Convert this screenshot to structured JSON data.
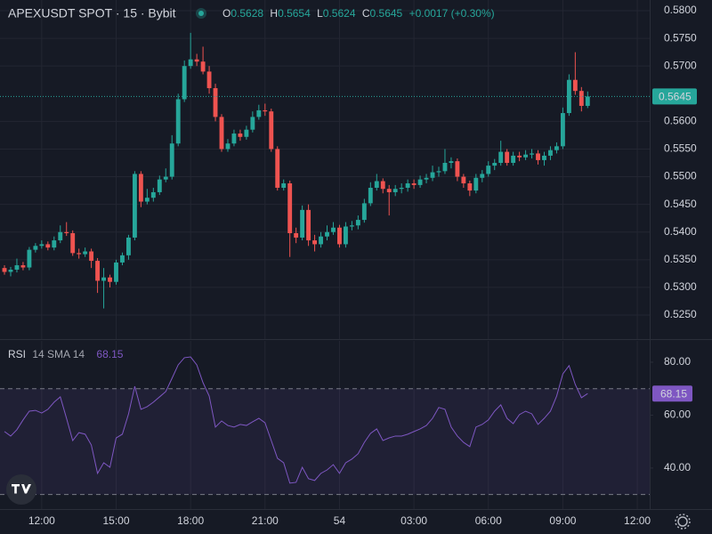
{
  "chart_data": [
    {
      "type": "candlestick",
      "title": "APEXUSDT SPOT · 15 · Bybit",
      "ohlc_labels": [
        "O",
        "H",
        "L",
        "C"
      ],
      "change": "+0.0017 (+0.30%)",
      "up_color": "#26a69a",
      "down_color": "#ef5350",
      "grid": true,
      "last_price_line": true,
      "open": [
        0.5335,
        0.5328,
        0.5332,
        0.534,
        0.5336,
        0.5368,
        0.5375,
        0.5378,
        0.5372,
        0.5385,
        0.54,
        0.5398,
        0.5362,
        0.536,
        0.5365,
        0.5348,
        0.5312,
        0.5318,
        0.531,
        0.5345,
        0.5358,
        0.539,
        0.5505,
        0.5455,
        0.5462,
        0.5472,
        0.5495,
        0.55,
        0.556,
        0.564,
        0.57,
        0.5712,
        0.5708,
        0.569,
        0.566,
        0.5608,
        0.555,
        0.556,
        0.5578,
        0.5572,
        0.5585,
        0.5608,
        0.562,
        0.5618,
        0.555,
        0.548,
        0.5488,
        0.5398,
        0.539,
        0.544,
        0.5385,
        0.5378,
        0.5392,
        0.54,
        0.5408,
        0.5378,
        0.541,
        0.5412,
        0.5422,
        0.5452,
        0.548,
        0.5492,
        0.5478,
        0.5472,
        0.5478,
        0.548,
        0.5488,
        0.5485,
        0.5495,
        0.5498,
        0.5508,
        0.551,
        0.5525,
        0.5528,
        0.55,
        0.5488,
        0.5475,
        0.5498,
        0.5505,
        0.552,
        0.5525,
        0.5545,
        0.5525,
        0.5538,
        0.5535,
        0.554,
        0.5542,
        0.553,
        0.5538,
        0.5548,
        0.5555,
        0.5615,
        0.5675,
        0.5655,
        0.5628
      ],
      "high": [
        0.534,
        0.5337,
        0.5352,
        0.5346,
        0.5373,
        0.538,
        0.5385,
        0.5383,
        0.5392,
        0.5412,
        0.5418,
        0.5403,
        0.537,
        0.5372,
        0.537,
        0.5353,
        0.5335,
        0.5323,
        0.535,
        0.5363,
        0.5395,
        0.551,
        0.551,
        0.5478,
        0.548,
        0.5502,
        0.5515,
        0.5575,
        0.565,
        0.571,
        0.576,
        0.5722,
        0.5735,
        0.57,
        0.5668,
        0.5613,
        0.5568,
        0.5585,
        0.5585,
        0.5592,
        0.5618,
        0.563,
        0.5632,
        0.5623,
        0.5555,
        0.5495,
        0.5493,
        0.5408,
        0.5448,
        0.545,
        0.5395,
        0.54,
        0.5412,
        0.5418,
        0.5413,
        0.5418,
        0.542,
        0.543,
        0.546,
        0.549,
        0.5505,
        0.5497,
        0.5485,
        0.5485,
        0.5488,
        0.5495,
        0.5495,
        0.5502,
        0.5505,
        0.552,
        0.5518,
        0.555,
        0.5535,
        0.5533,
        0.5505,
        0.5493,
        0.5505,
        0.5512,
        0.5528,
        0.5532,
        0.5565,
        0.555,
        0.5545,
        0.5545,
        0.5548,
        0.555,
        0.5548,
        0.5545,
        0.5555,
        0.5562,
        0.5625,
        0.5685,
        0.5725,
        0.5662,
        0.5654
      ],
      "low": [
        0.5323,
        0.532,
        0.5327,
        0.5331,
        0.5331,
        0.5363,
        0.537,
        0.5367,
        0.5367,
        0.538,
        0.5393,
        0.5357,
        0.5352,
        0.5355,
        0.5335,
        0.529,
        0.5262,
        0.53,
        0.5305,
        0.534,
        0.535,
        0.5385,
        0.5445,
        0.545,
        0.5455,
        0.5467,
        0.549,
        0.5495,
        0.5555,
        0.5635,
        0.5695,
        0.57,
        0.5685,
        0.565,
        0.56,
        0.5545,
        0.5545,
        0.5555,
        0.5565,
        0.5567,
        0.558,
        0.5603,
        0.561,
        0.5545,
        0.5475,
        0.5475,
        0.5355,
        0.538,
        0.5385,
        0.5375,
        0.5365,
        0.5372,
        0.5385,
        0.5395,
        0.5372,
        0.5372,
        0.5403,
        0.5405,
        0.5417,
        0.5447,
        0.5475,
        0.547,
        0.543,
        0.5465,
        0.547,
        0.5473,
        0.5478,
        0.548,
        0.5488,
        0.5492,
        0.55,
        0.5505,
        0.5515,
        0.5492,
        0.548,
        0.5465,
        0.547,
        0.549,
        0.55,
        0.5512,
        0.552,
        0.552,
        0.552,
        0.5528,
        0.553,
        0.5533,
        0.5522,
        0.552,
        0.553,
        0.5542,
        0.555,
        0.561,
        0.5648,
        0.5618,
        0.5624
      ],
      "close": [
        0.5328,
        0.5332,
        0.534,
        0.5336,
        0.5368,
        0.5375,
        0.5378,
        0.5372,
        0.5385,
        0.54,
        0.5398,
        0.5362,
        0.536,
        0.5365,
        0.5348,
        0.5312,
        0.5318,
        0.531,
        0.5345,
        0.5358,
        0.539,
        0.5505,
        0.5455,
        0.5462,
        0.5472,
        0.5495,
        0.55,
        0.556,
        0.564,
        0.57,
        0.5712,
        0.5708,
        0.569,
        0.566,
        0.5608,
        0.555,
        0.556,
        0.5578,
        0.5572,
        0.5585,
        0.5608,
        0.562,
        0.5618,
        0.555,
        0.548,
        0.5488,
        0.5398,
        0.539,
        0.544,
        0.5385,
        0.5378,
        0.5392,
        0.54,
        0.5408,
        0.5378,
        0.541,
        0.5412,
        0.5422,
        0.5452,
        0.548,
        0.5492,
        0.5478,
        0.5472,
        0.5478,
        0.548,
        0.5488,
        0.5485,
        0.5495,
        0.5498,
        0.5508,
        0.551,
        0.5525,
        0.5528,
        0.55,
        0.5488,
        0.5475,
        0.5498,
        0.5505,
        0.552,
        0.5525,
        0.5545,
        0.5525,
        0.5538,
        0.5535,
        0.554,
        0.5542,
        0.553,
        0.5538,
        0.5548,
        0.5555,
        0.5615,
        0.5675,
        0.5655,
        0.5628,
        0.5645
      ],
      "xlim": [
        -0.72,
        104
      ],
      "xticks": [
        {
          "value": 6,
          "label": "12:00"
        },
        {
          "value": 18,
          "label": "15:00"
        },
        {
          "value": 30,
          "label": "18:00"
        },
        {
          "value": 42,
          "label": "21:00"
        },
        54,
        {
          "value": 66,
          "label": "03:00"
        },
        {
          "value": 78,
          "label": "06:00"
        },
        {
          "value": 90,
          "label": "09:00"
        },
        {
          "value": 102,
          "label": "12:00"
        }
      ],
      "ylim": [
        0.52066,
        0.58193
      ],
      "yticks": [
        {
          "value": 0.58,
          "label": "0.5800"
        },
        {
          "value": 0.575,
          "label": "0.5750"
        },
        {
          "value": 0.57,
          "label": "0.5700"
        },
        {
          "value": 0.56,
          "label": "0.5600"
        },
        {
          "value": 0.555,
          "label": "0.5550"
        },
        {
          "value": 0.55,
          "label": "0.5500"
        },
        {
          "value": 0.545,
          "label": "0.5450"
        },
        {
          "value": 0.54,
          "label": "0.5400"
        },
        {
          "value": 0.535,
          "label": "0.5350"
        },
        {
          "value": 0.53,
          "label": "0.5300"
        },
        {
          "value": 0.525,
          "label": "0.5250"
        }
      ]
    },
    {
      "type": "line",
      "title": "RSI",
      "params": "14 SMA 14",
      "band": [
        30,
        70
      ],
      "band_color": "#7e57c2",
      "series": [
        {
          "name": "RSI",
          "color": "#7e57c2",
          "values": [
            53.8,
            52.1,
            54.5,
            58.2,
            61.5,
            61.8,
            60.8,
            62.2,
            64.9,
            66.9,
            58.8,
            50.4,
            53.4,
            52.8,
            48.7,
            38.0,
            42.0,
            40.3,
            51.4,
            52.8,
            60.5,
            70.9,
            62.2,
            63.2,
            64.9,
            66.9,
            68.9,
            73.9,
            79.0,
            81.7,
            82.0,
            79.0,
            72.3,
            67.2,
            55.5,
            57.8,
            56.1,
            55.5,
            56.5,
            56.1,
            57.5,
            58.8,
            57.1,
            50.4,
            43.7,
            42.0,
            34.3,
            34.6,
            40.3,
            36.0,
            35.3,
            38.0,
            39.3,
            41.3,
            38.0,
            42.0,
            43.4,
            45.4,
            49.7,
            53.1,
            54.8,
            50.4,
            51.4,
            52.1,
            52.1,
            52.8,
            53.8,
            54.8,
            56.1,
            58.8,
            62.9,
            62.2,
            55.5,
            52.1,
            49.7,
            48.1,
            55.5,
            56.5,
            58.2,
            61.5,
            63.9,
            58.8,
            56.8,
            60.2,
            61.5,
            60.5,
            56.5,
            58.8,
            61.5,
            67.2,
            75.6,
            78.7,
            71.6,
            66.6,
            68.15
          ]
        }
      ],
      "ylim": [
        24.5,
        88.07
      ],
      "yticks": [
        {
          "value": 80,
          "label": "80.00"
        },
        {
          "value": 60,
          "label": "60.00"
        },
        {
          "value": 40,
          "label": "40.00"
        }
      ]
    }
  ]
}
